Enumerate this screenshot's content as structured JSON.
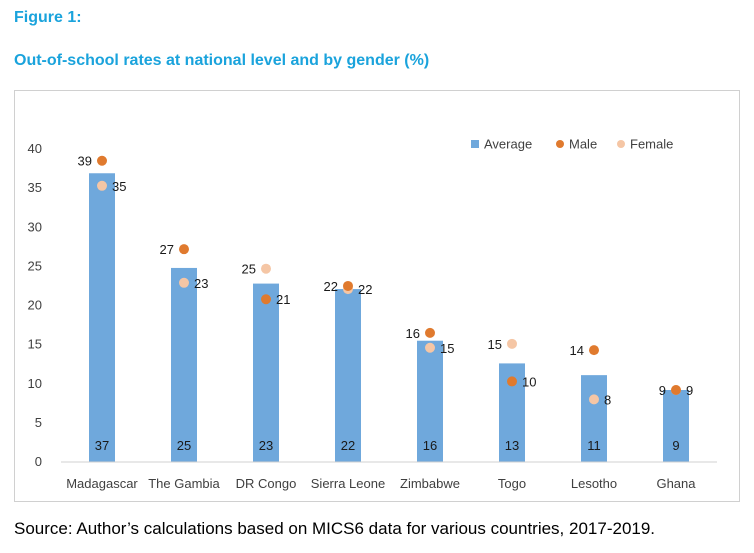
{
  "figure_label": "Figure 1:",
  "title": "Out-of-school rates at national level and by gender (%)",
  "source": "Source: Author’s calculations based on MICS6 data for various countries, 2017-2019.",
  "colors": {
    "average": "#6fa8dc",
    "male": "#e07a2e",
    "female": "#f5c6a5",
    "title": "#1aa3dc"
  },
  "chart_data": {
    "type": "bar",
    "categories": [
      "Madagascar",
      "The Gambia",
      "DR Congo",
      "Sierra Leone",
      "Zimbabwe",
      "Togo",
      "Lesotho",
      "Ghana"
    ],
    "series": [
      {
        "name": "Average",
        "kind": "bar",
        "values": [
          37,
          25,
          23,
          22,
          16,
          13,
          11,
          9
        ]
      },
      {
        "name": "Male",
        "kind": "dot",
        "values": [
          39,
          27,
          21,
          22,
          16,
          10,
          14,
          9
        ]
      },
      {
        "name": "Female",
        "kind": "dot",
        "values": [
          35,
          23,
          25,
          22,
          15,
          15,
          8,
          9
        ]
      }
    ],
    "bar_plot_values": [
      36.9,
      24.8,
      22.8,
      22.1,
      15.5,
      12.6,
      11.1,
      9.2
    ],
    "male_plot_values": [
      38.5,
      27.2,
      20.8,
      22.5,
      16.5,
      10.3,
      14.3,
      9.2
    ],
    "female_plot_values": [
      35.3,
      22.9,
      24.7,
      22.1,
      14.6,
      15.1,
      8.0,
      9.2
    ],
    "yticks": [
      0,
      5,
      10,
      15,
      20,
      25,
      30,
      35,
      40
    ],
    "ylim": [
      0,
      40
    ],
    "legend": [
      "Average",
      "Male",
      "Female"
    ],
    "legend_position": "top-right",
    "grid": false
  }
}
